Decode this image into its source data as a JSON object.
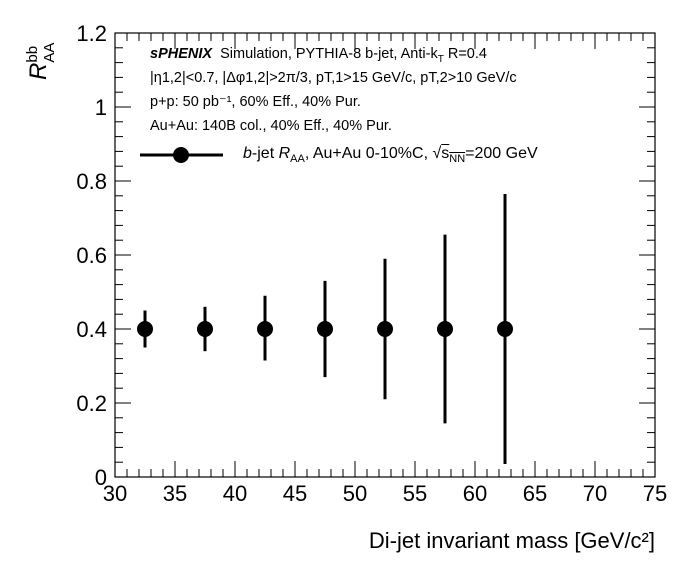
{
  "chart_data": {
    "type": "scatter",
    "title": "",
    "xlabel": "Di-jet invariant mass [GeV/c²]",
    "ylabel": "R_AA^bb",
    "ylabel_main": "R",
    "ylabel_sub": "AA",
    "ylabel_sup": "bb",
    "xlim": [
      30,
      75
    ],
    "ylim": [
      0,
      1.2
    ],
    "xticks": [
      30,
      35,
      40,
      45,
      50,
      55,
      60,
      65,
      70,
      75
    ],
    "xtick_labels": [
      "30",
      "35",
      "40",
      "45",
      "50",
      "55",
      "60",
      "65",
      "70",
      "75"
    ],
    "yticks": [
      0,
      0.2,
      0.4,
      0.6,
      0.8,
      1,
      1.2
    ],
    "ytick_labels": [
      "0",
      "0.2",
      "0.4",
      "0.6",
      "0.8",
      "1",
      "1.2"
    ],
    "grid": false,
    "legend_position": "top",
    "series": [
      {
        "name": "b-jet R_AA, Au+Au 0-10%C, √s_NN=200 GeV",
        "color": "#000000",
        "marker": "circle",
        "x": [
          32.5,
          37.5,
          42.5,
          47.5,
          52.5,
          57.5,
          62.5
        ],
        "y": [
          0.4,
          0.4,
          0.4,
          0.4,
          0.4,
          0.4,
          0.4
        ],
        "err_low": [
          0.05,
          0.06,
          0.085,
          0.13,
          0.19,
          0.255,
          0.365
        ],
        "err_high": [
          0.05,
          0.06,
          0.09,
          0.13,
          0.19,
          0.255,
          0.365
        ]
      }
    ]
  },
  "annotations": {
    "brand": "sPHENIX",
    "line1_rest": "Simulation, PYTHIA-8 b-jet, Anti-k",
    "line1_sub": "T",
    "line1_tail": "R=0.4",
    "line2": "|η1,2|<0.7, |Δφ1,2|>2π/3, pT,1>15 GeV/c, pT,2>10 GeV/c",
    "line3": "p+p: 50 pb⁻¹, 60% Eff., 40% Pur.",
    "line4": "Au+Au: 140B col., 40% Eff., 40% Pur."
  },
  "legend": {
    "label_b": "b",
    "label_jet": "-jet ",
    "label_R": "R",
    "label_AA": "AA",
    "label_mid": ", Au+Au 0-10%C, ",
    "label_sqrt": "s",
    "label_NN": "NN",
    "label_tail": "=200 GeV"
  }
}
